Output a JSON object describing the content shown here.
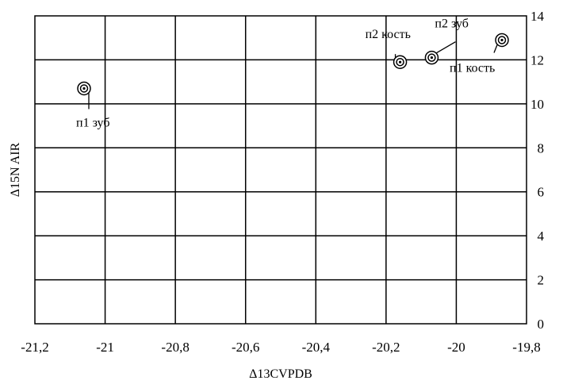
{
  "chart_data": {
    "type": "scatter",
    "xlabel": "Δ13CVPDB",
    "ylabel": "Δ15N AIR",
    "xlim": [
      -21.2,
      -19.8
    ],
    "ylim": [
      0,
      14
    ],
    "x_ticks": [
      "-21,2",
      "-21",
      "-20,8",
      "-20,6",
      "-20,4",
      "-20,2",
      "-20",
      "-19,8"
    ],
    "y_ticks": [
      "0",
      "2",
      "4",
      "6",
      "8",
      "10",
      "12",
      "14"
    ],
    "grid": true,
    "y_axis_side": "right",
    "points": [
      {
        "label": "п1 зуб",
        "x": -21.06,
        "y": 10.7
      },
      {
        "label": "п2 кость",
        "x": -20.16,
        "y": 11.9
      },
      {
        "label": "п2 зуб",
        "x": -20.07,
        "y": 12.1
      },
      {
        "label": "п1 кость",
        "x": -19.87,
        "y": 12.9
      }
    ]
  }
}
